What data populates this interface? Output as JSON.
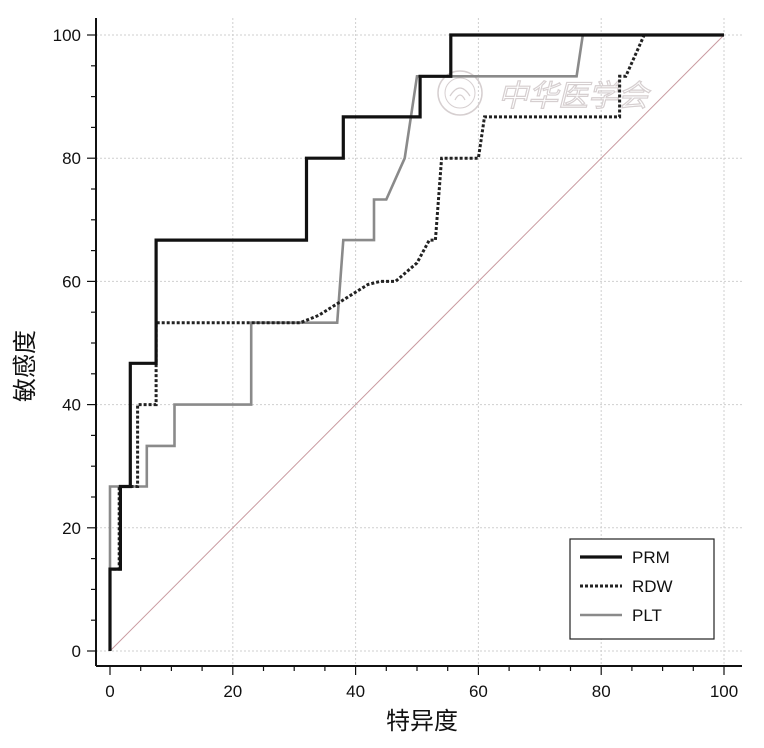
{
  "chart_data": {
    "type": "line",
    "title": "",
    "xlabel": "特异度",
    "ylabel": "敏感度",
    "xlim": [
      0,
      100
    ],
    "ylim": [
      0,
      100
    ],
    "x_ticks": [
      0,
      20,
      40,
      60,
      80,
      100
    ],
    "y_ticks": [
      0,
      20,
      40,
      60,
      80,
      100
    ],
    "grid": true,
    "legend_position": "bottom-right",
    "series": [
      {
        "name": "PRM",
        "style": "solid",
        "color": "#111111",
        "points": [
          [
            0,
            0
          ],
          [
            0,
            13.3
          ],
          [
            1.7,
            13.3
          ],
          [
            1.7,
            26.7
          ],
          [
            3.3,
            26.7
          ],
          [
            3.3,
            46.7
          ],
          [
            7.5,
            46.7
          ],
          [
            7.5,
            66.7
          ],
          [
            32,
            66.7
          ],
          [
            32,
            80
          ],
          [
            38,
            80
          ],
          [
            38,
            86.7
          ],
          [
            50.5,
            86.7
          ],
          [
            50.5,
            93.3
          ],
          [
            55.5,
            93.3
          ],
          [
            55.5,
            100
          ],
          [
            100,
            100
          ]
        ]
      },
      {
        "name": "RDW",
        "style": "dotted",
        "color": "#222222",
        "points": [
          [
            0,
            0
          ],
          [
            0,
            13.3
          ],
          [
            1.5,
            13.3
          ],
          [
            1.5,
            26.7
          ],
          [
            4.5,
            26.7
          ],
          [
            4.5,
            40
          ],
          [
            7.5,
            40
          ],
          [
            7.5,
            53.3
          ],
          [
            31,
            53.3
          ],
          [
            34,
            54.5
          ],
          [
            38,
            57
          ],
          [
            42,
            59.5
          ],
          [
            44,
            60
          ],
          [
            46.5,
            60
          ],
          [
            50,
            63
          ],
          [
            52,
            66.7
          ],
          [
            53,
            66.7
          ],
          [
            54,
            80
          ],
          [
            60,
            80
          ],
          [
            61,
            86.7
          ],
          [
            83,
            86.7
          ],
          [
            83,
            93.3
          ],
          [
            84,
            93.3
          ],
          [
            87,
            100
          ],
          [
            100,
            100
          ]
        ]
      },
      {
        "name": "PLT",
        "style": "solid",
        "color": "#8a8a8a",
        "points": [
          [
            0,
            0
          ],
          [
            0,
            26.7
          ],
          [
            6,
            26.7
          ],
          [
            6,
            33.3
          ],
          [
            10.5,
            33.3
          ],
          [
            10.5,
            40
          ],
          [
            23,
            40
          ],
          [
            23,
            53.3
          ],
          [
            37,
            53.3
          ],
          [
            38,
            66.7
          ],
          [
            43,
            66.7
          ],
          [
            43,
            73.3
          ],
          [
            45,
            73.3
          ],
          [
            48,
            80
          ],
          [
            50,
            93.3
          ],
          [
            76,
            93.3
          ],
          [
            77,
            100
          ],
          [
            100,
            100
          ]
        ]
      },
      {
        "name": "",
        "style": "diagonal",
        "color": "#c99aa0",
        "points": [
          [
            0,
            0
          ],
          [
            100,
            100
          ]
        ]
      }
    ]
  },
  "watermark": {
    "text": "中华医学会",
    "color": "#d6cfd0"
  }
}
